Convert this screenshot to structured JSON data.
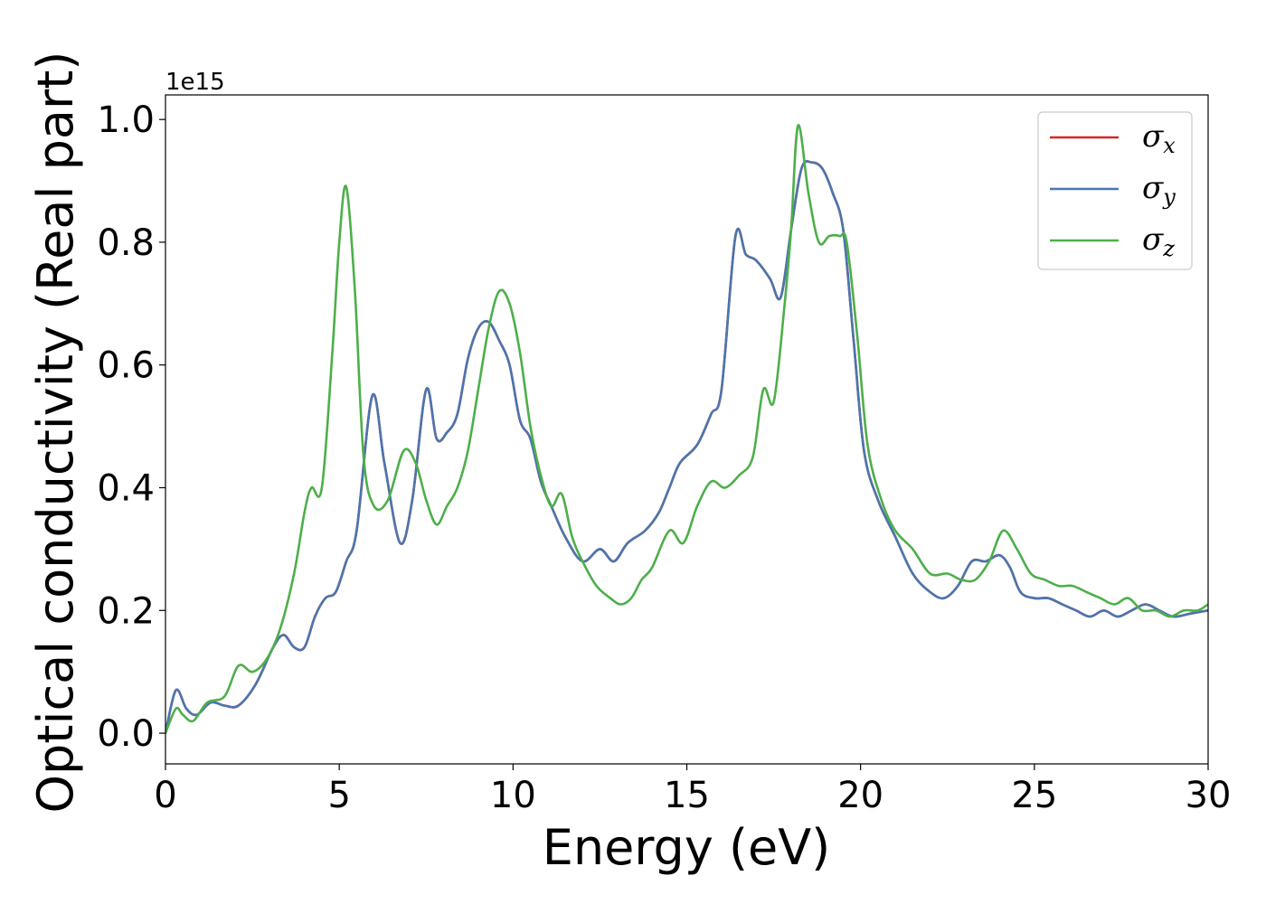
{
  "chart_data": {
    "type": "line",
    "xlabel": "Energy (eV)",
    "ylabel": "Optical conductivity (Real part)",
    "y_offset_label": "1e15",
    "xlim": [
      0,
      30
    ],
    "ylim": [
      -0.05,
      1.04
    ],
    "x_ticks": [
      0,
      5,
      10,
      15,
      20,
      25,
      30
    ],
    "x_tick_labels": [
      "0",
      "5",
      "10",
      "15",
      "20",
      "25",
      "30"
    ],
    "y_ticks": [
      0.0,
      0.2,
      0.4,
      0.6,
      0.8,
      1.0
    ],
    "y_tick_labels": [
      "0.0",
      "0.2",
      "0.4",
      "0.6",
      "0.8",
      "1.0"
    ],
    "grid": false,
    "legend_position": "top-right",
    "series": [
      {
        "name": "σx",
        "symbol": "σ",
        "subscript": "x",
        "color": "#d62728",
        "x": [
          0.0,
          0.3,
          0.6,
          0.9,
          1.3,
          1.7,
          2.1,
          2.6,
          3.1,
          3.4,
          3.7,
          4.0,
          4.3,
          4.6,
          4.9,
          5.2,
          5.5,
          5.95,
          6.3,
          6.75,
          7.1,
          7.5,
          7.8,
          8.1,
          8.4,
          8.7,
          9.0,
          9.3,
          9.6,
          9.9,
          10.2,
          10.5,
          10.8,
          11.1,
          11.5,
          12.0,
          12.5,
          12.9,
          13.3,
          13.8,
          14.2,
          14.5,
          14.8,
          15.3,
          15.7,
          16.0,
          16.4,
          16.7,
          17.0,
          17.4,
          17.7,
          18.0,
          18.3,
          18.6,
          18.9,
          19.2,
          19.5,
          19.8,
          20.1,
          20.5,
          21.0,
          21.5,
          22.0,
          22.4,
          22.8,
          23.2,
          23.6,
          24.0,
          24.3,
          24.6,
          25.0,
          25.4,
          25.8,
          26.2,
          26.6,
          27.0,
          27.4,
          27.8,
          28.2,
          28.6,
          29.0,
          29.5,
          30.0
        ],
        "values": [
          0.0,
          0.07,
          0.04,
          0.03,
          0.05,
          0.045,
          0.045,
          0.08,
          0.14,
          0.16,
          0.14,
          0.14,
          0.19,
          0.22,
          0.23,
          0.28,
          0.33,
          0.55,
          0.44,
          0.31,
          0.38,
          0.56,
          0.48,
          0.49,
          0.52,
          0.61,
          0.66,
          0.67,
          0.64,
          0.6,
          0.51,
          0.48,
          0.41,
          0.37,
          0.32,
          0.28,
          0.3,
          0.28,
          0.31,
          0.33,
          0.36,
          0.4,
          0.44,
          0.47,
          0.52,
          0.56,
          0.81,
          0.78,
          0.77,
          0.74,
          0.71,
          0.82,
          0.92,
          0.93,
          0.92,
          0.88,
          0.82,
          0.64,
          0.46,
          0.38,
          0.32,
          0.26,
          0.23,
          0.22,
          0.24,
          0.28,
          0.28,
          0.29,
          0.27,
          0.23,
          0.22,
          0.22,
          0.21,
          0.2,
          0.19,
          0.2,
          0.19,
          0.2,
          0.21,
          0.2,
          0.19,
          0.195,
          0.2
        ]
      },
      {
        "name": "σy",
        "symbol": "σ",
        "subscript": "y",
        "color": "#4a76ae",
        "x": [
          0.0,
          0.3,
          0.6,
          0.9,
          1.3,
          1.7,
          2.1,
          2.6,
          3.1,
          3.4,
          3.7,
          4.0,
          4.3,
          4.6,
          4.9,
          5.2,
          5.5,
          5.95,
          6.3,
          6.75,
          7.1,
          7.5,
          7.8,
          8.1,
          8.4,
          8.7,
          9.0,
          9.3,
          9.6,
          9.9,
          10.2,
          10.5,
          10.8,
          11.1,
          11.5,
          12.0,
          12.5,
          12.9,
          13.3,
          13.8,
          14.2,
          14.5,
          14.8,
          15.3,
          15.7,
          16.0,
          16.4,
          16.7,
          17.0,
          17.4,
          17.7,
          18.0,
          18.3,
          18.6,
          18.9,
          19.2,
          19.5,
          19.8,
          20.1,
          20.5,
          21.0,
          21.5,
          22.0,
          22.4,
          22.8,
          23.2,
          23.6,
          24.0,
          24.3,
          24.6,
          25.0,
          25.4,
          25.8,
          26.2,
          26.6,
          27.0,
          27.4,
          27.8,
          28.2,
          28.6,
          29.0,
          29.5,
          30.0
        ],
        "values": [
          0.0,
          0.07,
          0.04,
          0.03,
          0.05,
          0.045,
          0.045,
          0.08,
          0.14,
          0.16,
          0.14,
          0.14,
          0.19,
          0.22,
          0.23,
          0.28,
          0.33,
          0.55,
          0.44,
          0.31,
          0.38,
          0.56,
          0.48,
          0.49,
          0.52,
          0.61,
          0.66,
          0.67,
          0.64,
          0.6,
          0.51,
          0.48,
          0.41,
          0.37,
          0.32,
          0.28,
          0.3,
          0.28,
          0.31,
          0.33,
          0.36,
          0.4,
          0.44,
          0.47,
          0.52,
          0.56,
          0.81,
          0.78,
          0.77,
          0.74,
          0.71,
          0.82,
          0.92,
          0.93,
          0.92,
          0.88,
          0.82,
          0.64,
          0.46,
          0.38,
          0.32,
          0.26,
          0.23,
          0.22,
          0.24,
          0.28,
          0.28,
          0.29,
          0.27,
          0.23,
          0.22,
          0.22,
          0.21,
          0.2,
          0.19,
          0.2,
          0.19,
          0.2,
          0.21,
          0.2,
          0.19,
          0.195,
          0.2
        ]
      },
      {
        "name": "σz",
        "symbol": "σ",
        "subscript": "z",
        "color": "#4daf4a",
        "x": [
          0.0,
          0.3,
          0.5,
          0.8,
          1.2,
          1.7,
          2.1,
          2.5,
          2.9,
          3.3,
          3.7,
          4.0,
          4.2,
          4.5,
          4.8,
          5.0,
          5.2,
          5.45,
          5.7,
          6.0,
          6.4,
          6.85,
          7.2,
          7.5,
          7.8,
          8.1,
          8.4,
          8.7,
          9.0,
          9.3,
          9.6,
          9.9,
          10.2,
          10.5,
          10.8,
          11.1,
          11.4,
          11.7,
          12.0,
          12.4,
          12.8,
          13.1,
          13.4,
          13.7,
          14.0,
          14.5,
          14.9,
          15.3,
          15.7,
          16.1,
          16.5,
          16.9,
          17.2,
          17.5,
          17.8,
          18.0,
          18.2,
          18.5,
          18.8,
          19.1,
          19.4,
          19.6,
          19.9,
          20.2,
          20.6,
          21.0,
          21.5,
          22.0,
          22.5,
          22.9,
          23.3,
          23.7,
          24.1,
          24.5,
          24.9,
          25.3,
          25.7,
          26.1,
          26.5,
          26.9,
          27.3,
          27.7,
          28.1,
          28.5,
          28.9,
          29.3,
          29.7,
          30.0
        ],
        "values": [
          0.0,
          0.04,
          0.03,
          0.02,
          0.05,
          0.06,
          0.11,
          0.1,
          0.12,
          0.17,
          0.26,
          0.36,
          0.4,
          0.4,
          0.62,
          0.8,
          0.89,
          0.72,
          0.45,
          0.37,
          0.38,
          0.46,
          0.44,
          0.38,
          0.34,
          0.37,
          0.4,
          0.46,
          0.56,
          0.66,
          0.72,
          0.7,
          0.62,
          0.5,
          0.42,
          0.37,
          0.39,
          0.32,
          0.28,
          0.24,
          0.22,
          0.21,
          0.22,
          0.25,
          0.27,
          0.33,
          0.31,
          0.37,
          0.41,
          0.4,
          0.42,
          0.45,
          0.56,
          0.54,
          0.69,
          0.82,
          0.99,
          0.88,
          0.8,
          0.81,
          0.81,
          0.8,
          0.65,
          0.47,
          0.38,
          0.33,
          0.3,
          0.26,
          0.26,
          0.25,
          0.25,
          0.28,
          0.33,
          0.3,
          0.26,
          0.25,
          0.24,
          0.24,
          0.23,
          0.22,
          0.21,
          0.22,
          0.2,
          0.2,
          0.19,
          0.2,
          0.2,
          0.21
        ]
      }
    ]
  }
}
